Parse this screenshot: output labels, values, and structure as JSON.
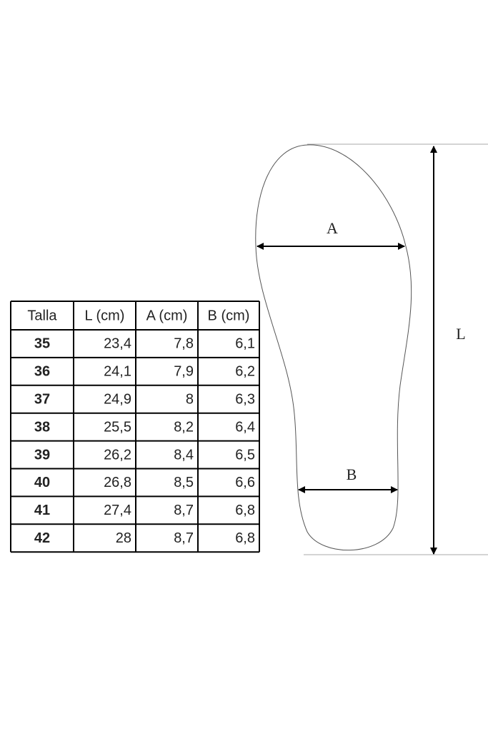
{
  "table": {
    "header": [
      "Talla",
      "L (cm)",
      "A (cm)",
      "B (cm)"
    ],
    "rows": [
      [
        "35",
        "23,4",
        "7,8",
        "6,1"
      ],
      [
        "36",
        "24,1",
        "7,9",
        "6,2"
      ],
      [
        "37",
        "24,9",
        "8",
        "6,3"
      ],
      [
        "38",
        "25,5",
        "8,2",
        "6,4"
      ],
      [
        "39",
        "26,2",
        "8,4",
        "6,5"
      ],
      [
        "40",
        "26,8",
        "8,5",
        "6,6"
      ],
      [
        "41",
        "27,4",
        "8,7",
        "6,8"
      ],
      [
        "42",
        "28",
        "8,7",
        "6,8"
      ]
    ]
  },
  "diagram": {
    "width_label": "A",
    "heel_label": "B",
    "length_label": "L"
  }
}
